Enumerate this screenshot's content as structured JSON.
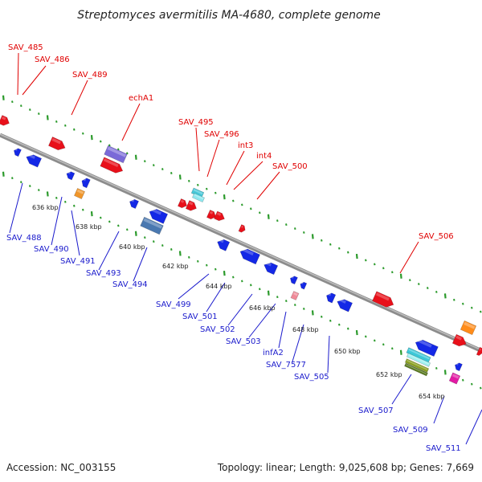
{
  "title": "Streptomyces avermitilis MA-4680, complete genome",
  "accession": "Accession: NC_003155",
  "summary": "Topology: linear; Length: 9,025,608 bp; Genes: 7,669",
  "colors": {
    "forward_label": "#e00000",
    "reverse_label": "#1a1acc",
    "backbone": "#8c8c8c",
    "tick": "#2b9a2b"
  },
  "scale_labels": [
    "636 kbp",
    "638 kbp",
    "640 kbp",
    "642 kbp",
    "644 kbp",
    "646 kbp",
    "648 kbp",
    "650 kbp",
    "652 kbp",
    "654 kbp"
  ],
  "forward_labels": [
    "SAV_485",
    "SAV_486",
    "SAV_489",
    "echA1",
    "SAV_495",
    "SAV_496",
    "int3",
    "int4",
    "SAV_500",
    "SAV_506"
  ],
  "reverse_labels": [
    "SAV_488",
    "SAV_490",
    "SAV_491",
    "SAV_493",
    "SAV_494",
    "SAV_499",
    "SAV_501",
    "SAV_502",
    "SAV_503",
    "infA2",
    "SAV_7577",
    "SAV_505",
    "SAV_507",
    "SAV_509",
    "SAV_511"
  ]
}
